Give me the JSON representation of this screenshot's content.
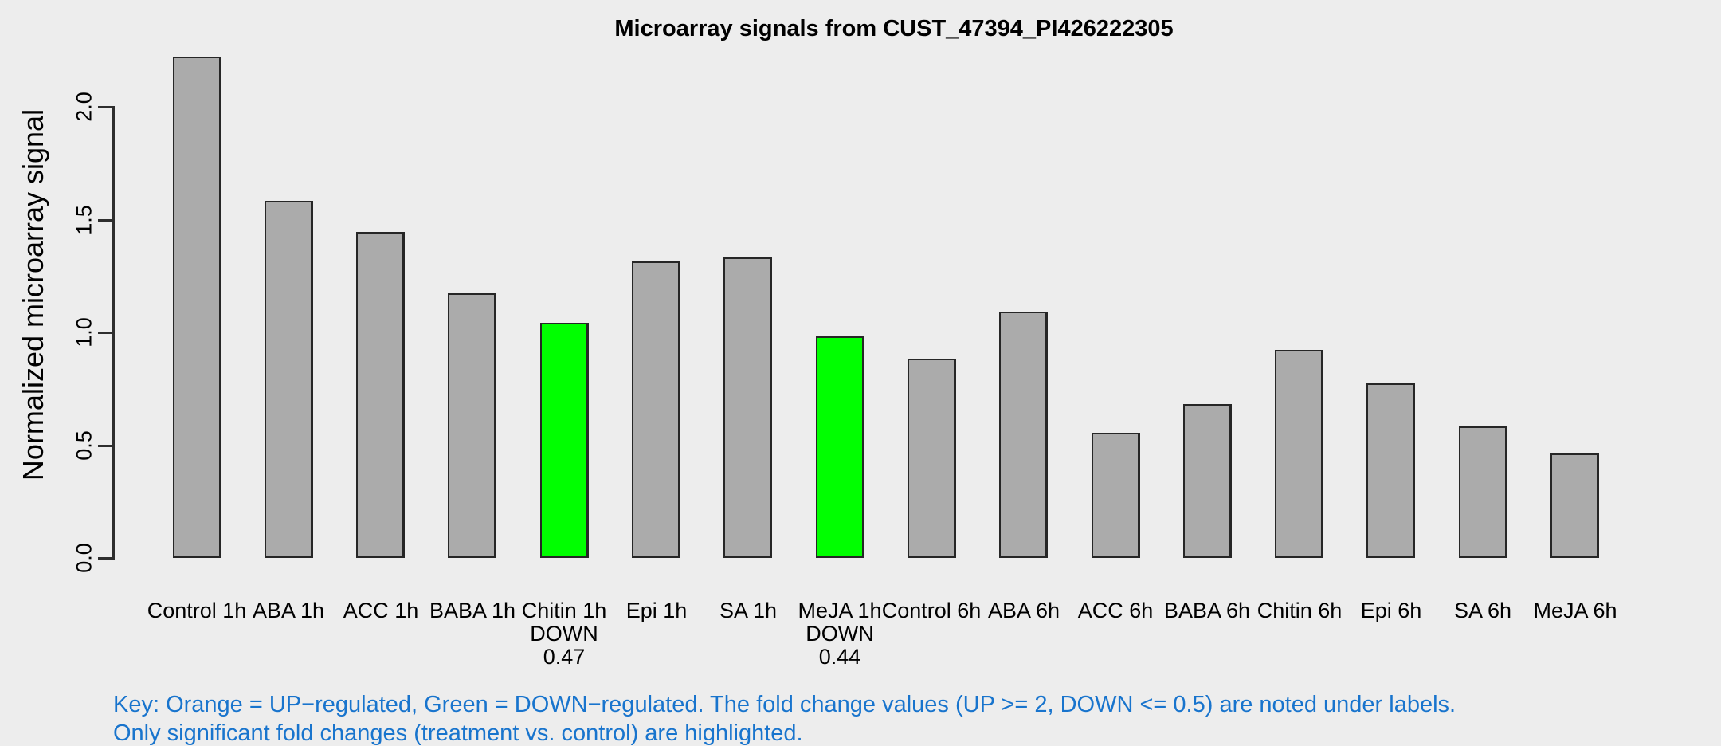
{
  "title": "Microarray signals from CUST_47394_PI426222305",
  "key": {
    "line1": "Key: Orange = UP−regulated, Green = DOWN−regulated. The fold change values (UP >= 2, DOWN <= 0.5) are noted under labels.",
    "line2": "Only significant fold changes (treatment vs. control) are highlighted.",
    "color": "#1874CD"
  },
  "colors": {
    "background": "#EDEDED",
    "bar_default": "#ABABAB",
    "bar_down_highlight": "#00FF00",
    "bar_up_highlight": "#FFA500",
    "bar_border": "#262626",
    "axis": "#2E2E2E",
    "text": "#000000"
  },
  "chart_data": {
    "type": "bar",
    "title": "Microarray signals from CUST_47394_PI426222305",
    "xlabel": "",
    "ylabel": "Normalized microarray signal",
    "ylim": [
      0,
      2.3
    ],
    "yticks": [
      "0.0",
      "0.5",
      "1.0",
      "1.5",
      "2.0"
    ],
    "grid": false,
    "legend_position": "none",
    "categories": [
      "Control 1h",
      "ABA 1h",
      "ACC 1h",
      "BABA 1h",
      "Chitin 1h",
      "Epi 1h",
      "SA 1h",
      "MeJA 1h",
      "Control 6h",
      "ABA 6h",
      "ACC 6h",
      "BABA 6h",
      "Chitin 6h",
      "Epi 6h",
      "SA 6h",
      "MeJA 6h"
    ],
    "values": [
      2.22,
      1.58,
      1.44,
      1.17,
      1.04,
      1.31,
      1.33,
      0.98,
      0.88,
      1.09,
      0.55,
      0.68,
      0.92,
      0.77,
      0.58,
      0.46
    ],
    "bars": [
      {
        "label": "Control 1h",
        "value": 2.22,
        "highlight": null,
        "fold_change": null
      },
      {
        "label": "ABA 1h",
        "value": 1.58,
        "highlight": null,
        "fold_change": null
      },
      {
        "label": "ACC 1h",
        "value": 1.44,
        "highlight": null,
        "fold_change": null
      },
      {
        "label": "BABA 1h",
        "value": 1.17,
        "highlight": null,
        "fold_change": null
      },
      {
        "label": "Chitin 1h",
        "value": 1.04,
        "highlight": "DOWN",
        "fold_change": "0.47"
      },
      {
        "label": "Epi 1h",
        "value": 1.31,
        "highlight": null,
        "fold_change": null
      },
      {
        "label": "SA 1h",
        "value": 1.33,
        "highlight": null,
        "fold_change": null
      },
      {
        "label": "MeJA 1h",
        "value": 0.98,
        "highlight": "DOWN",
        "fold_change": "0.44"
      },
      {
        "label": "Control 6h",
        "value": 0.88,
        "highlight": null,
        "fold_change": null
      },
      {
        "label": "ABA 6h",
        "value": 1.09,
        "highlight": null,
        "fold_change": null
      },
      {
        "label": "ACC 6h",
        "value": 0.55,
        "highlight": null,
        "fold_change": null
      },
      {
        "label": "BABA 6h",
        "value": 0.68,
        "highlight": null,
        "fold_change": null
      },
      {
        "label": "Chitin 6h",
        "value": 0.92,
        "highlight": null,
        "fold_change": null
      },
      {
        "label": "Epi 6h",
        "value": 0.77,
        "highlight": null,
        "fold_change": null
      },
      {
        "label": "SA 6h",
        "value": 0.58,
        "highlight": null,
        "fold_change": null
      },
      {
        "label": "MeJA 6h",
        "value": 0.46,
        "highlight": null,
        "fold_change": null
      }
    ]
  }
}
